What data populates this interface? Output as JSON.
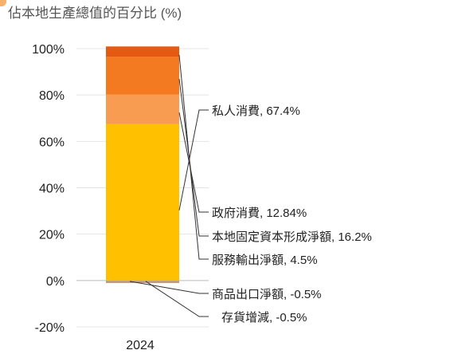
{
  "chart_data": {
    "type": "bar",
    "title": "佔本地生產總值的百分比 (%)",
    "categories": [
      "2024"
    ],
    "ylim": [
      -20,
      100
    ],
    "y_ticks": [
      100,
      80,
      60,
      40,
      20,
      0,
      -20
    ],
    "y_tick_labels": [
      "100%",
      "80%",
      "60%",
      "40%",
      "20%",
      "0%",
      "-20%"
    ],
    "grid": true,
    "stacked": true,
    "series": [
      {
        "name": "私人消費",
        "label": "私人消費, 67.4%",
        "value": 67.4,
        "color": "#ffc000"
      },
      {
        "name": "政府消費",
        "label": "政府消費, 12.84%",
        "value": 12.84,
        "color": "#f89c52"
      },
      {
        "name": "本地固定資本形成淨額",
        "label": "本地固定資本形成淨額, 16.2%",
        "value": 16.2,
        "color": "#f47a22"
      },
      {
        "name": "服務輸出淨額",
        "label": "服務輸出淨額, 4.5%",
        "value": 4.5,
        "color": "#e35a10"
      },
      {
        "name": "商品出口淨額",
        "label": "商品出口淨額, -0.5%",
        "value": -0.5,
        "color": "#c7a98a"
      },
      {
        "name": "存貨增減",
        "label": "存貨增減, -0.5%",
        "value": -0.5,
        "color": "#b08060"
      }
    ]
  }
}
